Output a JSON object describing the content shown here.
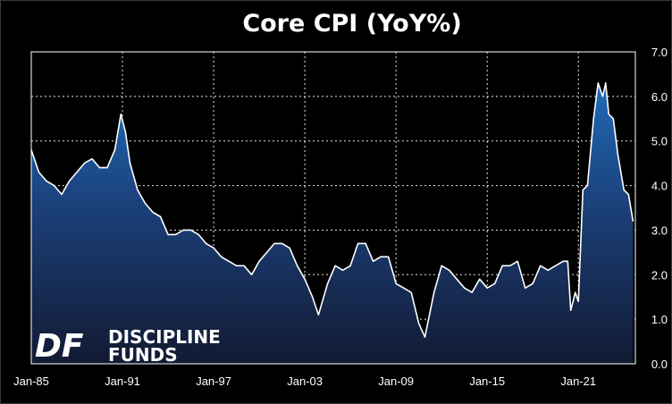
{
  "chart_data": {
    "type": "area",
    "title": "Core CPI (YoY%)",
    "xlabel": "",
    "ylabel": "",
    "ylim": [
      0,
      7
    ],
    "y_ticks": [
      "0.0",
      "1.0",
      "2.0",
      "3.0",
      "4.0",
      "5.0",
      "6.0",
      "7.0"
    ],
    "x_ticks": [
      "Jan-85",
      "Jan-91",
      "Jan-97",
      "Jan-03",
      "Jan-09",
      "Jan-15",
      "Jan-21"
    ],
    "grid": true,
    "y_axis_side": "right",
    "series": [
      {
        "color": "#1a5aa0",
        "x": [
          1985.0,
          1985.5,
          1986.0,
          1986.5,
          1987.0,
          1987.5,
          1988.0,
          1988.5,
          1989.0,
          1989.5,
          1990.0,
          1990.5,
          1990.9,
          1991.2,
          1991.5,
          1992.0,
          1992.5,
          1993.0,
          1993.5,
          1994.0,
          1994.5,
          1995.0,
          1995.5,
          1996.0,
          1996.5,
          1997.0,
          1997.5,
          1998.0,
          1998.5,
          1999.0,
          1999.5,
          2000.0,
          2000.5,
          2001.0,
          2001.5,
          2002.0,
          2002.5,
          2003.0,
          2003.5,
          2003.9,
          2004.5,
          2005.0,
          2005.5,
          2006.0,
          2006.5,
          2007.0,
          2007.5,
          2008.0,
          2008.5,
          2009.0,
          2009.5,
          2010.0,
          2010.5,
          2010.9,
          2011.5,
          2012.0,
          2012.5,
          2013.0,
          2013.5,
          2014.0,
          2014.5,
          2015.0,
          2015.5,
          2016.0,
          2016.5,
          2017.0,
          2017.5,
          2018.0,
          2018.5,
          2019.0,
          2019.5,
          2020.0,
          2020.3,
          2020.5,
          2020.8,
          2021.0,
          2021.3,
          2021.6,
          2022.0,
          2022.3,
          2022.6,
          2022.8,
          2023.0,
          2023.3,
          2023.6,
          2024.0,
          2024.3,
          2024.6
        ],
        "values": [
          4.8,
          4.3,
          4.1,
          4.0,
          3.8,
          4.1,
          4.3,
          4.5,
          4.6,
          4.4,
          4.4,
          4.8,
          5.6,
          5.2,
          4.5,
          3.9,
          3.6,
          3.4,
          3.3,
          2.9,
          2.9,
          3.0,
          3.0,
          2.9,
          2.7,
          2.6,
          2.4,
          2.3,
          2.2,
          2.2,
          2.0,
          2.3,
          2.5,
          2.7,
          2.7,
          2.6,
          2.2,
          1.9,
          1.5,
          1.1,
          1.8,
          2.2,
          2.1,
          2.2,
          2.7,
          2.7,
          2.3,
          2.4,
          2.4,
          1.8,
          1.7,
          1.6,
          0.9,
          0.6,
          1.6,
          2.2,
          2.1,
          1.9,
          1.7,
          1.6,
          1.9,
          1.7,
          1.8,
          2.2,
          2.2,
          2.3,
          1.7,
          1.8,
          2.2,
          2.1,
          2.2,
          2.3,
          2.3,
          1.2,
          1.6,
          1.4,
          3.9,
          4.0,
          5.5,
          6.3,
          6.0,
          6.3,
          5.6,
          5.5,
          4.7,
          3.9,
          3.8,
          3.2
        ]
      }
    ],
    "logo": {
      "mark": "DF",
      "line1": "DISCIPLINE",
      "line2": "FUNDS"
    }
  }
}
